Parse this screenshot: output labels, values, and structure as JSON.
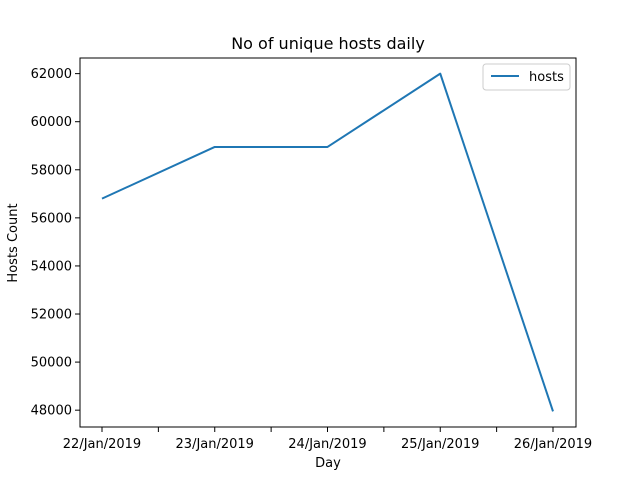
{
  "chart_data": {
    "type": "line",
    "title": "No of unique hosts daily",
    "xlabel": "Day",
    "ylabel": "Hosts Count",
    "categories": [
      "22/Jan/2019",
      "23/Jan/2019",
      "24/Jan/2019",
      "25/Jan/2019",
      "26/Jan/2019"
    ],
    "series": [
      {
        "name": "hosts",
        "color": "#1f77b4",
        "values": [
          56800,
          58950,
          58950,
          62000,
          47950
        ]
      }
    ],
    "ylim": [
      47300,
      62650
    ],
    "yticks": [
      48000,
      50000,
      52000,
      54000,
      56000,
      58000,
      60000,
      62000
    ],
    "ytick_labels": [
      "48000",
      "50000",
      "52000",
      "54000",
      "56000",
      "58000",
      "60000",
      "62000"
    ],
    "legend": {
      "placement": "top-right"
    },
    "grid": false
  }
}
